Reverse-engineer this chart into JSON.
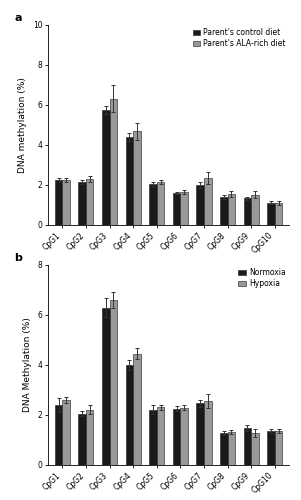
{
  "categories": [
    "CpG1",
    "CpG2",
    "CpG3",
    "CpG4",
    "CpG5",
    "CpG6",
    "CpG7",
    "CpG8",
    "CpG9",
    "CpG10"
  ],
  "panel_a": {
    "label": "a",
    "ylabel": "DNA methylation (%)",
    "ylim": [
      0,
      10
    ],
    "yticks": [
      0,
      2,
      4,
      6,
      8,
      10
    ],
    "series1_label": "Parent's control diet",
    "series2_label": "Parent's ALA-rich diet",
    "series1_values": [
      2.25,
      2.15,
      5.75,
      4.42,
      2.07,
      1.6,
      2.0,
      1.42,
      1.33,
      1.12
    ],
    "series2_values": [
      2.25,
      2.28,
      6.32,
      4.68,
      2.15,
      1.67,
      2.35,
      1.57,
      1.52,
      1.1
    ],
    "series1_errors": [
      0.1,
      0.1,
      0.2,
      0.2,
      0.1,
      0.07,
      0.15,
      0.1,
      0.08,
      0.07
    ],
    "series2_errors": [
      0.12,
      0.15,
      0.68,
      0.42,
      0.12,
      0.1,
      0.28,
      0.15,
      0.18,
      0.08
    ]
  },
  "panel_b": {
    "label": "b",
    "ylabel": "DNA Methylation (%)",
    "ylim": [
      0,
      8
    ],
    "yticks": [
      0,
      2,
      4,
      6,
      8
    ],
    "series1_label": "Normoxia",
    "series2_label": "Hypoxia",
    "series1_values": [
      2.4,
      2.05,
      6.3,
      4.02,
      2.22,
      2.25,
      2.47,
      1.28,
      1.5,
      1.35
    ],
    "series2_values": [
      2.6,
      2.22,
      6.62,
      4.45,
      2.32,
      2.3,
      2.58,
      1.33,
      1.28,
      1.35
    ],
    "series1_errors": [
      0.28,
      0.1,
      0.38,
      0.2,
      0.18,
      0.1,
      0.15,
      0.08,
      0.12,
      0.08
    ],
    "series2_errors": [
      0.12,
      0.18,
      0.32,
      0.22,
      0.1,
      0.1,
      0.28,
      0.08,
      0.15,
      0.08
    ]
  },
  "bar_color_series1": "#1a1a1a",
  "bar_color_series2": "#999999",
  "bar_width": 0.32,
  "bar_edge_color": "#1a1a1a",
  "bar_edge_width": 0.4,
  "error_capsize": 1.5,
  "error_linewidth": 0.7,
  "error_color": "#333333",
  "legend_fontsize": 5.5,
  "axis_fontsize": 6.5,
  "tick_fontsize": 5.5,
  "label_fontsize": 8,
  "background_color": "#ffffff"
}
